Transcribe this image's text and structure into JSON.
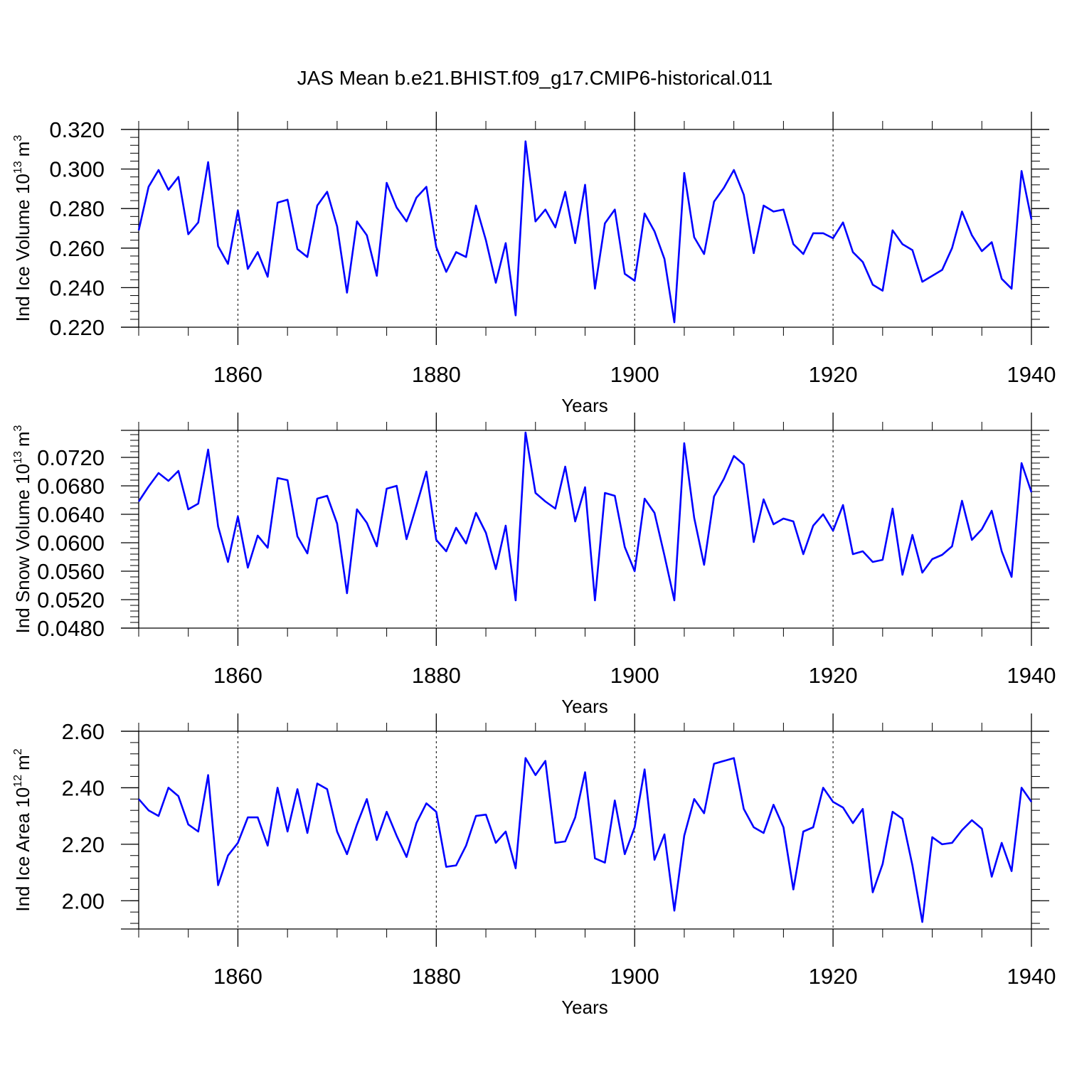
{
  "title": "JAS Mean b.e21.BHIST.f09_g17.CMIP6-historical.011",
  "style": {
    "line_color": "#0000ff",
    "axis_color": "#000000",
    "grid_color": "#000000"
  },
  "chart_data": [
    {
      "type": "line",
      "ylabel": "Ind Ice Volume 10",
      "ylabel_sup": "13",
      "ylabel_unit": "m",
      "ylabel_unit_sup": "3",
      "xlabel": "Years",
      "xlim": [
        1850,
        1940
      ],
      "ylim": [
        0.22,
        0.32
      ],
      "yticks": [
        "0.220",
        "0.240",
        "0.260",
        "0.280",
        "0.300",
        "0.320"
      ],
      "xticks": [
        "1860",
        "1880",
        "1900",
        "1920",
        "1940"
      ],
      "vgrid": [
        1860,
        1880,
        1900,
        1920
      ],
      "x_start": 1850,
      "values": [
        0.269,
        0.291,
        0.2995,
        0.2895,
        0.296,
        0.267,
        0.273,
        0.3035,
        0.261,
        0.252,
        0.279,
        0.2495,
        0.258,
        0.2455,
        0.283,
        0.2845,
        0.2595,
        0.2555,
        0.2815,
        0.2885,
        0.271,
        0.2375,
        0.2735,
        0.2665,
        0.246,
        0.293,
        0.2805,
        0.2735,
        0.2855,
        0.291,
        0.2605,
        0.248,
        0.258,
        0.2555,
        0.2815,
        0.264,
        0.2425,
        0.2625,
        0.226,
        0.314,
        0.2735,
        0.2795,
        0.2705,
        0.2885,
        0.2625,
        0.292,
        0.2395,
        0.2725,
        0.2795,
        0.247,
        0.2435,
        0.2775,
        0.2685,
        0.2545,
        0.2225,
        0.298,
        0.2655,
        0.257,
        0.2835,
        0.2905,
        0.2995,
        0.287,
        0.2575,
        0.2815,
        0.2785,
        0.2795,
        0.262,
        0.257,
        0.2675,
        0.2675,
        0.265,
        0.273,
        0.258,
        0.253,
        0.2415,
        0.2385,
        0.269,
        0.262,
        0.259,
        0.243,
        0.246,
        0.249,
        0.26,
        0.2785,
        0.2665,
        0.2585,
        0.263,
        0.2445,
        0.2395,
        0.299,
        0.2745
      ]
    },
    {
      "type": "line",
      "ylabel": "Ind Snow Volume 10",
      "ylabel_sup": "13",
      "ylabel_unit": "m",
      "ylabel_unit_sup": "3",
      "xlabel": "Years",
      "xlim": [
        1850,
        1940
      ],
      "ylim": [
        0.048,
        0.0758
      ],
      "yticks": [
        "0.0480",
        "0.0520",
        "0.0560",
        "0.0600",
        "0.0640",
        "0.0680",
        "0.0720"
      ],
      "xticks": [
        "1860",
        "1880",
        "1900",
        "1920",
        "1940"
      ],
      "vgrid": [
        1860,
        1880,
        1900,
        1920
      ],
      "x_start": 1850,
      "values": [
        0.0658,
        0.0679,
        0.0698,
        0.0687,
        0.0701,
        0.0647,
        0.0655,
        0.0731,
        0.0623,
        0.0573,
        0.0637,
        0.0565,
        0.061,
        0.0593,
        0.0691,
        0.0688,
        0.0609,
        0.0585,
        0.0662,
        0.0666,
        0.0627,
        0.0529,
        0.0647,
        0.0628,
        0.0595,
        0.0676,
        0.068,
        0.0605,
        0.0652,
        0.07,
        0.0604,
        0.0588,
        0.0621,
        0.0599,
        0.0642,
        0.0614,
        0.0563,
        0.0624,
        0.0519,
        0.0755,
        0.067,
        0.0658,
        0.0648,
        0.0707,
        0.063,
        0.0678,
        0.0519,
        0.067,
        0.0666,
        0.0594,
        0.056,
        0.0662,
        0.0642,
        0.0582,
        0.0519,
        0.074,
        0.0635,
        0.0569,
        0.0665,
        0.069,
        0.0722,
        0.071,
        0.0601,
        0.0661,
        0.0626,
        0.0634,
        0.063,
        0.0584,
        0.0624,
        0.064,
        0.0617,
        0.0653,
        0.0584,
        0.0588,
        0.0573,
        0.0576,
        0.0648,
        0.0555,
        0.0611,
        0.0558,
        0.0577,
        0.0583,
        0.0595,
        0.0659,
        0.0604,
        0.0619,
        0.0645,
        0.0588,
        0.0552,
        0.0712,
        0.0671
      ]
    },
    {
      "type": "line",
      "ylabel": "Ind Ice Area 10",
      "ylabel_sup": "12",
      "ylabel_unit": "m",
      "ylabel_unit_sup": "2",
      "xlabel": "Years",
      "xlim": [
        1850,
        1940
      ],
      "ylim": [
        1.9,
        2.6
      ],
      "yticks": [
        "2.00",
        "2.20",
        "2.40",
        "2.60"
      ],
      "xticks": [
        "1860",
        "1880",
        "1900",
        "1920",
        "1940"
      ],
      "vgrid": [
        1860,
        1880,
        1900,
        1920
      ],
      "x_start": 1850,
      "values": [
        2.36,
        2.32,
        2.3,
        2.4,
        2.37,
        2.27,
        2.245,
        2.445,
        2.055,
        2.16,
        2.205,
        2.295,
        2.295,
        2.195,
        2.4,
        2.245,
        2.395,
        2.24,
        2.415,
        2.395,
        2.245,
        2.165,
        2.27,
        2.36,
        2.215,
        2.315,
        2.23,
        2.155,
        2.275,
        2.345,
        2.315,
        2.12,
        2.125,
        2.195,
        2.3,
        2.305,
        2.205,
        2.245,
        2.115,
        2.505,
        2.445,
        2.495,
        2.205,
        2.21,
        2.295,
        2.455,
        2.15,
        2.135,
        2.355,
        2.165,
        2.26,
        2.465,
        2.145,
        2.235,
        1.965,
        2.23,
        2.36,
        2.31,
        2.485,
        2.495,
        2.505,
        2.325,
        2.26,
        2.24,
        2.34,
        2.26,
        2.04,
        2.245,
        2.26,
        2.4,
        2.35,
        2.33,
        2.275,
        2.325,
        2.03,
        2.13,
        2.315,
        2.29,
        2.125,
        1.925,
        2.225,
        2.2,
        2.205,
        2.25,
        2.285,
        2.255,
        2.085,
        2.205,
        2.105,
        2.4,
        2.35
      ]
    }
  ]
}
